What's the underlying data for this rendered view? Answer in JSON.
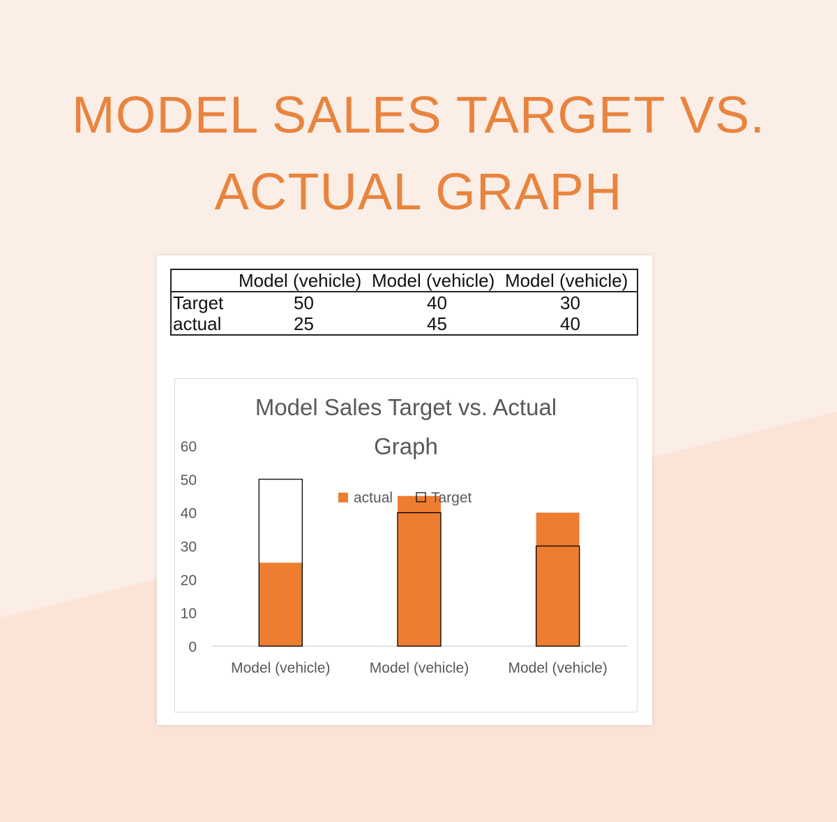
{
  "page": {
    "heading_line1": "MODEL SALES TARGET VS.",
    "heading_line2": "ACTUAL GRAPH"
  },
  "table": {
    "columns": [
      "",
      "Model (vehicle)",
      "Model (vehicle)",
      "Model (vehicle)"
    ],
    "rows": [
      {
        "label": "Target",
        "values": [
          "50",
          "40",
          "30"
        ]
      },
      {
        "label": "actual",
        "values": [
          "25",
          "45",
          "40"
        ]
      }
    ]
  },
  "chart_data": {
    "type": "bar",
    "title_line1": "Model Sales Target vs. Actual",
    "title_line2": "Graph",
    "categories": [
      "Model (vehicle)",
      "Model (vehicle)",
      "Model (vehicle)"
    ],
    "series": [
      {
        "name": "actual",
        "values": [
          25,
          45,
          40
        ],
        "color": "#ed7d31"
      },
      {
        "name": "Target",
        "values": [
          50,
          40,
          30
        ],
        "color": "none"
      }
    ],
    "ylim": [
      0,
      60
    ],
    "yticks": [
      0,
      10,
      20,
      30,
      40,
      50,
      60
    ],
    "grid": false,
    "legend": "top-center, overlapping plot"
  },
  "colors": {
    "accent": "#e8843f",
    "bar_fill": "#ed7d31",
    "background_light": "#fbeee6",
    "background_band": "#fce3d8"
  }
}
